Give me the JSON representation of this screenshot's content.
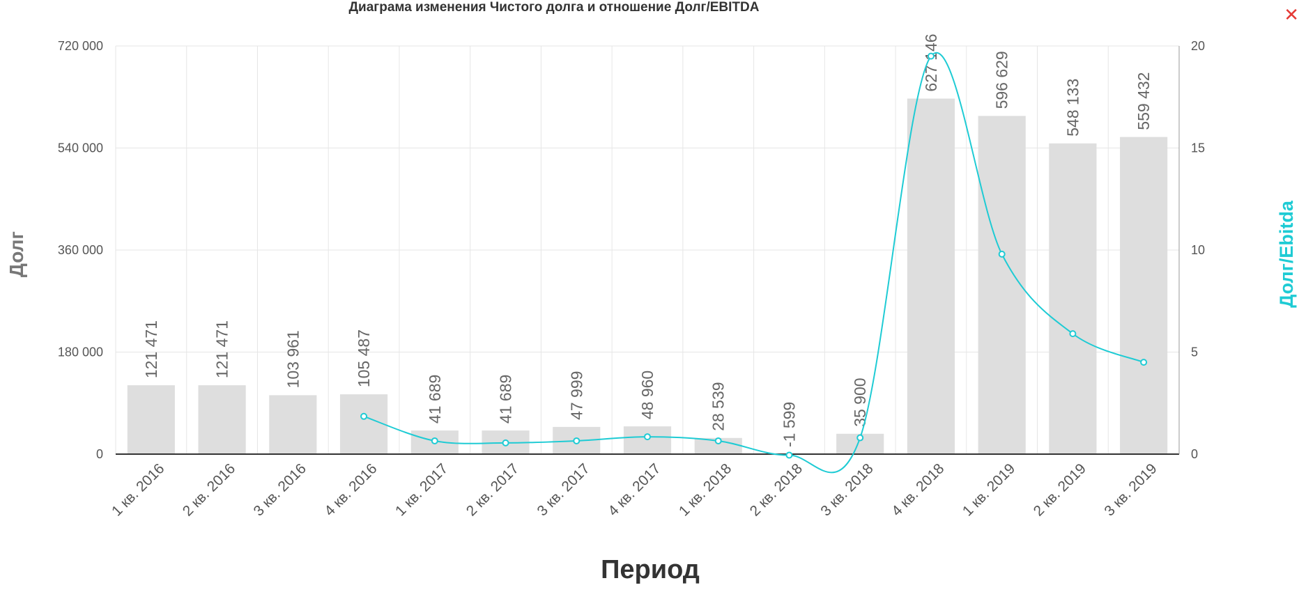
{
  "chart_data": {
    "type": "bar",
    "title": "Диаграма изменения Чистого долга и отношение Долг/EBITDA",
    "xlabel": "Период",
    "ylabel": "Долг",
    "y2label": "Долг/Ebitda",
    "categories": [
      "1 кв. 2016",
      "2 кв. 2016",
      "3 кв. 2016",
      "4 кв. 2016",
      "1 кв. 2017",
      "2 кв. 2017",
      "3 кв. 2017",
      "4 кв. 2017",
      "1 кв. 2018",
      "2 кв. 2018",
      "3 кв. 2018",
      "4 кв. 2018",
      "1 кв. 2019",
      "2 кв. 2019",
      "3 кв. 2019"
    ],
    "ylim": [
      0,
      720000
    ],
    "yticks": [
      0,
      180000,
      360000,
      540000,
      720000
    ],
    "ytick_labels": [
      "0",
      "180 000",
      "360 000",
      "540 000",
      "720 000"
    ],
    "y2lim": [
      0,
      20
    ],
    "y2ticks": [
      0,
      5,
      10,
      15,
      20
    ],
    "y2tick_labels": [
      "0",
      "5",
      "10",
      "15",
      "20"
    ],
    "grid": true,
    "series": [
      {
        "type": "bar",
        "axis": "left",
        "values": [
          121471,
          121471,
          103961,
          105487,
          41689,
          41689,
          47999,
          48960,
          28539,
          -1599,
          35900,
          627146,
          596629,
          548133,
          559432
        ],
        "labels": [
          "121 471",
          "121 471",
          "103 961",
          "105 487",
          "41 689",
          "41 689",
          "47 999",
          "48 960",
          "28 539",
          "-1 599",
          "35 900",
          "627 146",
          "596 629",
          "548 133",
          "559 432"
        ],
        "color": "#dedede"
      },
      {
        "type": "line",
        "axis": "right",
        "smooth": true,
        "values": [
          null,
          null,
          null,
          1.85,
          0.65,
          0.55,
          0.65,
          0.85,
          0.65,
          -0.05,
          0.8,
          19.5,
          9.8,
          5.9,
          4.5
        ],
        "color": "#1ecbd4"
      }
    ]
  },
  "close_icon": {
    "glyph": "✕",
    "color": "#e53935"
  }
}
